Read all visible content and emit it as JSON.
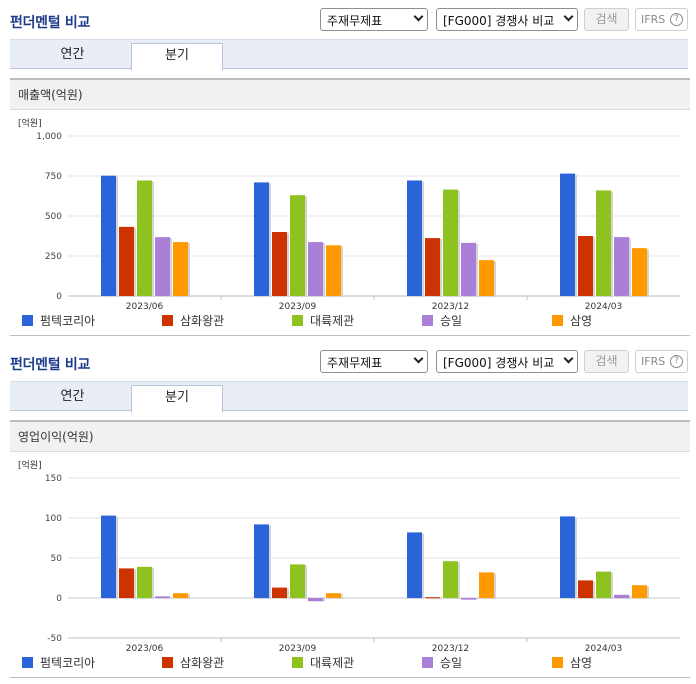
{
  "panels": [
    {
      "title": "펀더멘털 비교",
      "select_statement": "주재무제표",
      "select_compare": "[FG000] 경쟁사 비교",
      "search_label": "검색",
      "ifrs_label": "IFRS",
      "ifrs_help": "?",
      "tabs": [
        "연간",
        "분기"
      ],
      "active_tab": "분기",
      "metric_label": "매출액(억원)",
      "unit_label": "[억원]"
    },
    {
      "title": "펀더멘털 비교",
      "select_statement": "주재무제표",
      "select_compare": "[FG000] 경쟁사 비교",
      "search_label": "검색",
      "ifrs_label": "IFRS",
      "ifrs_help": "?",
      "tabs": [
        "연간",
        "분기"
      ],
      "active_tab": "분기",
      "metric_label": "영업이익(억원)",
      "unit_label": "[억원]"
    }
  ],
  "chart_data": [
    {
      "type": "bar",
      "categories": [
        "2023/06",
        "2023/09",
        "2023/12",
        "2024/03"
      ],
      "ylim": [
        0,
        1000
      ],
      "yticks": [
        0,
        250,
        500,
        750,
        1000
      ],
      "ytick_labels": [
        "0",
        "250",
        "500",
        "750",
        "1,000"
      ],
      "ylabel": "[억원]",
      "grid": true,
      "legend_position": "bottom",
      "series": [
        {
          "name": "펌텍코리아",
          "color": "#2a64d8",
          "values": [
            752,
            710,
            722,
            765
          ]
        },
        {
          "name": "삼화왕관",
          "color": "#cc3300",
          "values": [
            432,
            400,
            362,
            375
          ]
        },
        {
          "name": "대륙제관",
          "color": "#8ec21e",
          "values": [
            722,
            630,
            665,
            660
          ]
        },
        {
          "name": "승일",
          "color": "#a97fd8",
          "values": [
            368,
            337,
            332,
            368
          ]
        },
        {
          "name": "삼영",
          "color": "#ff9900",
          "values": [
            337,
            317,
            224,
            299
          ]
        }
      ]
    },
    {
      "type": "bar",
      "categories": [
        "2023/06",
        "2023/09",
        "2023/12",
        "2024/03"
      ],
      "ylim": [
        -50,
        150
      ],
      "yticks": [
        -50,
        0,
        50,
        100,
        150
      ],
      "ytick_labels": [
        "-50",
        "0",
        "50",
        "100",
        "150"
      ],
      "ylabel": "[억원]",
      "grid": true,
      "legend_position": "bottom",
      "series": [
        {
          "name": "펌텍코리아",
          "color": "#2a64d8",
          "values": [
            103,
            92,
            82,
            102
          ]
        },
        {
          "name": "삼화왕관",
          "color": "#cc3300",
          "values": [
            37,
            13,
            1,
            22
          ]
        },
        {
          "name": "대륙제관",
          "color": "#8ec21e",
          "values": [
            39,
            42,
            46,
            33
          ]
        },
        {
          "name": "승일",
          "color": "#a97fd8",
          "values": [
            2,
            -4,
            -2,
            4
          ]
        },
        {
          "name": "삼영",
          "color": "#ff9900",
          "values": [
            6,
            6,
            32,
            16
          ]
        }
      ]
    }
  ]
}
